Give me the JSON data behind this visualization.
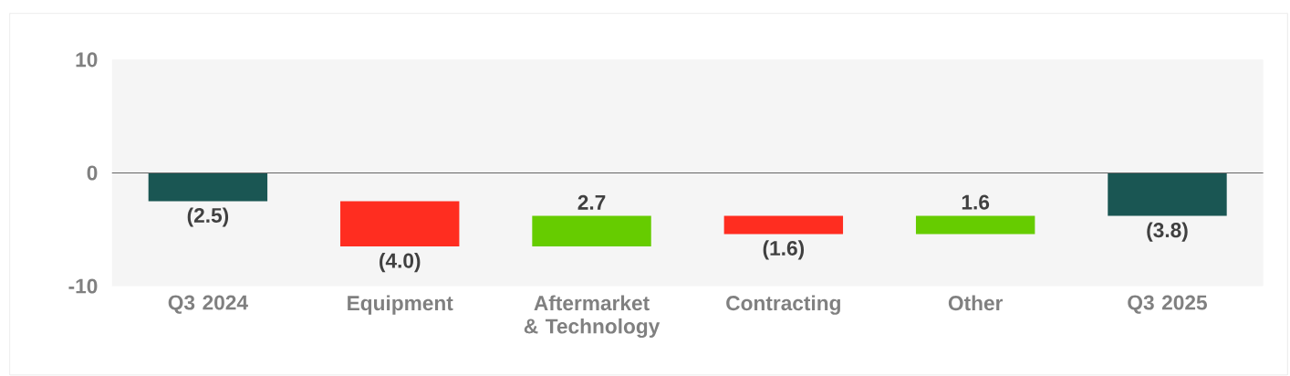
{
  "chart_data": {
    "type": "bar",
    "categories": [
      "Q3 2024",
      "Equipment",
      "Aftermarket & Technology",
      "Contracting",
      "Other",
      "Q3 2025"
    ],
    "values": [
      -2.5,
      -4.0,
      2.7,
      -1.6,
      1.6,
      -3.8
    ],
    "base": [
      0,
      -2.5,
      -6.5,
      -3.8,
      -5.4,
      0
    ],
    "colors": [
      "#1a5653",
      "#ff2d20",
      "#66cc00",
      "#ff2d20",
      "#66cc00",
      "#1a5653"
    ],
    "value_labels": [
      "(2.5)",
      "(4.0)",
      "2.7",
      "(1.6)",
      "1.6",
      "(3.8)"
    ],
    "ylim": [
      -10,
      10
    ],
    "yticks": [
      -10,
      0,
      10
    ]
  }
}
